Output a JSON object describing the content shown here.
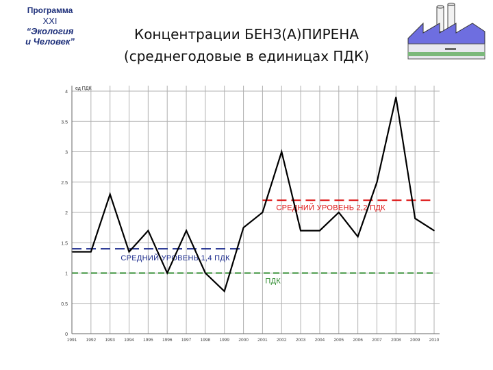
{
  "logo": {
    "line1": "Программа",
    "line2": "XXI",
    "line3": "“Экология",
    "line4": "и Человек”"
  },
  "title": {
    "line1": "Концентрации БЕНЗ(А)ПИРЕНА",
    "line2": "(среднегодовые в единицах ПДК)"
  },
  "colors": {
    "series": "#000000",
    "pdk_line": "#2e8b2e",
    "avg1": "#1a2a8c",
    "avg2": "#dd1111",
    "grid": "#b0b0b0"
  },
  "chart_data": {
    "type": "line",
    "ylabel": "ед ПДК",
    "ylim": [
      0,
      4
    ],
    "yticks": [
      "4",
      "3.5",
      "3",
      "2.5",
      "2",
      "1.5",
      "1",
      "0.5",
      "0"
    ],
    "ytick_values": [
      4,
      3.5,
      3,
      2.5,
      2,
      1.5,
      1,
      0.5,
      0
    ],
    "x_labels": [
      "1991",
      "1992",
      "1993",
      "1994",
      "1995",
      "1996",
      "1997",
      "1998",
      "1999",
      "2000",
      "2001",
      "2002",
      "2003",
      "2004",
      "2005",
      "2006",
      "2007",
      "2008",
      "2009",
      "2010"
    ],
    "grid": true,
    "series": [
      {
        "x": [
          1991,
          1992,
          1993,
          1994,
          1995,
          1996,
          1997,
          1998,
          1999,
          2000,
          2001,
          2002,
          2003,
          2004,
          2005,
          2006,
          2007,
          2008,
          2009,
          2010
        ],
        "y": [
          1.35,
          1.35,
          2.3,
          1.35,
          1.7,
          1.0,
          1.7,
          1.0,
          0.7,
          1.75,
          2.0,
          3.0,
          1.7,
          1.7,
          2.0,
          1.6,
          2.5,
          3.9,
          1.9,
          1.7
        ]
      }
    ],
    "reference_lines": [
      {
        "label": "ПДК",
        "y": 1.0,
        "x_from": 1991,
        "x_to": 2010,
        "style": "dashed",
        "color": "#2e8b2e"
      },
      {
        "label": "СРЕДНИЙ УРОВЕНЬ 1,4 ПДК",
        "y": 1.4,
        "x_from": 1991,
        "x_to": 2000,
        "style": "dashed",
        "color": "#1a2a8c"
      },
      {
        "label": "СРЕДНИЙ УРОВЕНЬ 2,2 ПДК",
        "y": 2.2,
        "x_from": 2001,
        "x_to": 2010,
        "style": "dashed",
        "color": "#dd1111"
      }
    ]
  }
}
